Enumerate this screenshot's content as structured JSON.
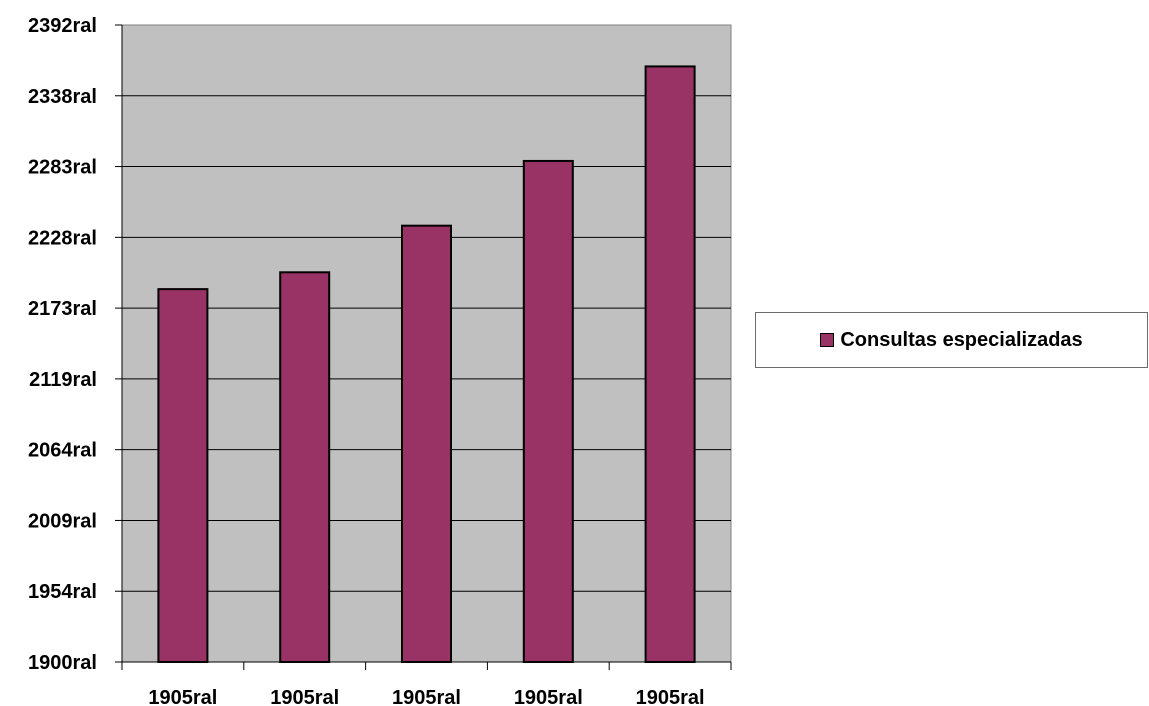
{
  "chart_data": {
    "type": "bar",
    "categories": [
      "1905ral",
      "1905ral",
      "1905ral",
      "1905ral",
      "1905ral"
    ],
    "series": [
      {
        "name": "Consultas especializadas",
        "values": [
          2188,
          2201,
          2237,
          2287,
          2360
        ],
        "color": "#993366"
      }
    ],
    "yticks": [
      "1900ral",
      "1954ral",
      "2009ral",
      "2064ral",
      "2119ral",
      "2173ral",
      "2228ral",
      "2283ral",
      "2338ral",
      "2392ral"
    ],
    "ylim": [
      1900,
      2392
    ],
    "grid": true,
    "plot_background": "#c0c0c0",
    "legend_position": "right"
  }
}
